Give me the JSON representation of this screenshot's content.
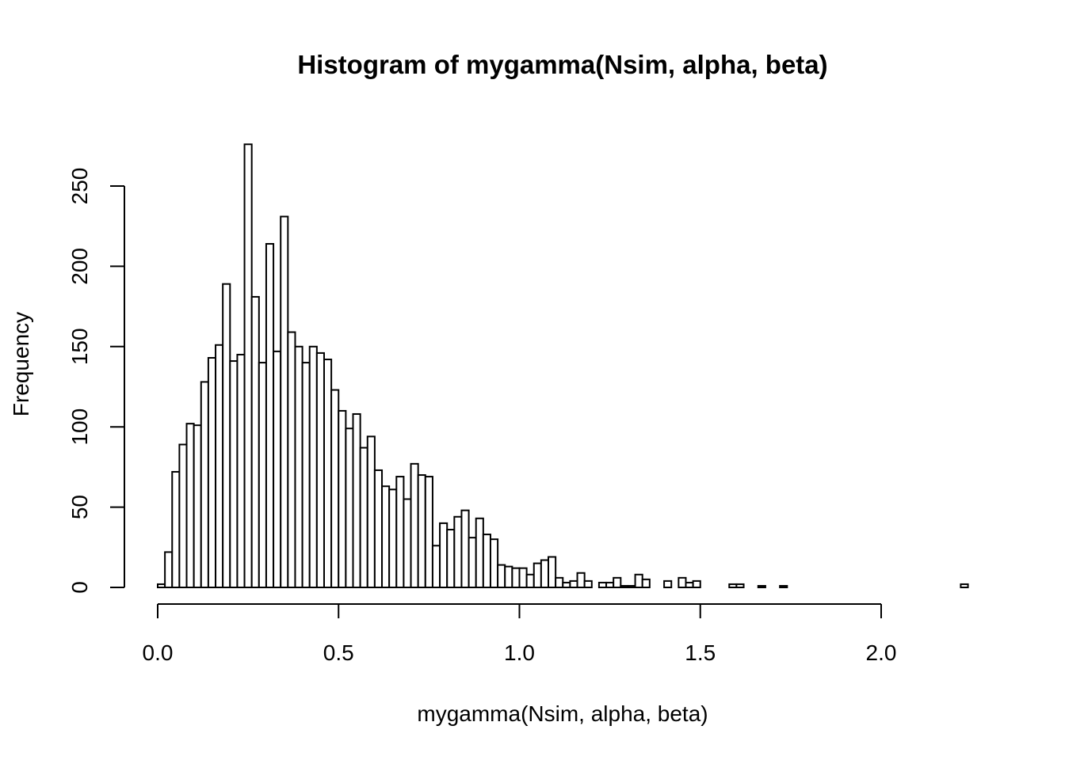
{
  "chart_data": {
    "type": "bar",
    "title": "Histogram of mygamma(Nsim, alpha, beta)",
    "xlabel": "mygamma(Nsim, alpha, beta)",
    "ylabel": "Frequency",
    "bin_start": 0.0,
    "bin_width": 0.02,
    "xlim": [
      0.0,
      2.24
    ],
    "ylim": [
      0,
      275
    ],
    "x_ticks": [
      0.0,
      0.5,
      1.0,
      1.5,
      2.0
    ],
    "x_tick_labels": [
      "0.0",
      "0.5",
      "1.0",
      "1.5",
      "2.0"
    ],
    "y_ticks": [
      0,
      50,
      100,
      150,
      200,
      250
    ],
    "y_tick_labels": [
      "0",
      "50",
      "100",
      "150",
      "200",
      "250"
    ],
    "counts": [
      2,
      22,
      72,
      89,
      102,
      101,
      128,
      143,
      151,
      189,
      141,
      145,
      276,
      181,
      140,
      214,
      147,
      231,
      159,
      150,
      140,
      150,
      146,
      142,
      123,
      110,
      99,
      108,
      87,
      94,
      73,
      63,
      61,
      69,
      55,
      77,
      70,
      69,
      26,
      40,
      36,
      44,
      48,
      31,
      43,
      33,
      30,
      14,
      13,
      12,
      12,
      8,
      15,
      17,
      19,
      6,
      3,
      4,
      9,
      4,
      0,
      3,
      3,
      6,
      1,
      1,
      8,
      5,
      0,
      0,
      4,
      0,
      6,
      3,
      4,
      0,
      0,
      0,
      0,
      2,
      2,
      0,
      0,
      1,
      0,
      0,
      1,
      0,
      0,
      0,
      0,
      0,
      0,
      0,
      0,
      0,
      0,
      0,
      0,
      0,
      0,
      0,
      0,
      0,
      0,
      0,
      0,
      0,
      0,
      0,
      0,
      2
    ]
  }
}
